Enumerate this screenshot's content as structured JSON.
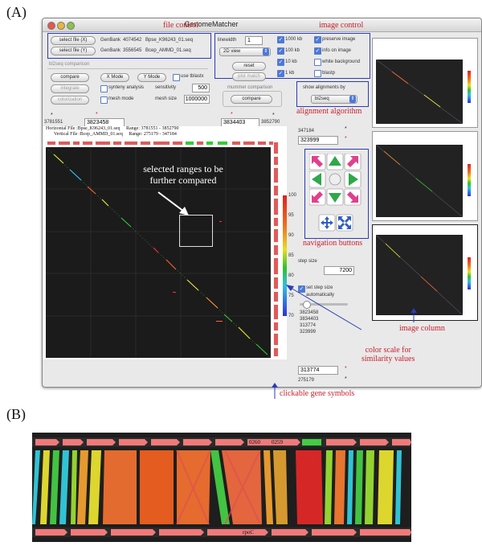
{
  "labels": {
    "panel_a": "(A)",
    "panel_b": "(B)"
  },
  "window": {
    "title": "GenomeMatcher"
  },
  "file_control": {
    "btn_x": "select file (X)",
    "btn_y": "select file (Y)",
    "rows": [
      {
        "format": "GenBank",
        "size": "4074542",
        "name": "Bpse_K96243_01.seq"
      },
      {
        "format": "GenBank",
        "size": "3556545",
        "name": "Bcep_AMMD_01.seq"
      }
    ]
  },
  "bl2seq": {
    "header": "bl2seq comparison",
    "compare": "compare",
    "x_mode": "X Mode",
    "y_mode": "Y Mode",
    "use_tblastx": "use tblastx",
    "integrate": "integrate",
    "synteny": "synteny analysis",
    "sensitivity_label": "sensitivity",
    "sensitivity": "500",
    "colorization": "colorization",
    "mesh_mode": "mesh mode",
    "mesh_size_label": "mesh size",
    "mesh_size": "1000000"
  },
  "image_control": {
    "linewidth_label": "linewidth",
    "linewidth": "1",
    "view": "2D view",
    "reset": "reset",
    "plot_match": "plot match",
    "opts_left": [
      "1000 kb",
      "100 kb",
      "10 kb",
      "1 kb"
    ],
    "opts_right": [
      "preserve image",
      "info on image",
      "white background",
      "blastp"
    ],
    "mummer_header": "mummer   comparison",
    "mummer_compare": "compare",
    "show_by": "show alignments by",
    "algo": "bl2seq"
  },
  "annotations": {
    "file_control": "file control",
    "image_control": "image control",
    "alignment_algorithm": "alignment algorithm",
    "selected_line1": "selected ranges to be",
    "selected_line2": "further compared",
    "navigation_buttons": "navigation buttons",
    "image_column": "image column",
    "color_scale_line1": "color scale for",
    "color_scale_line2": "similarity values",
    "gene_symbols": "clickable gene symbols"
  },
  "ranges": {
    "x_start": "3781551",
    "x_sel": "3823458",
    "x_end_sel": "3834403",
    "x_end": "3852790",
    "y_top": "347184",
    "y_sel": "323999",
    "y_low_sel": "313774",
    "y_low": "275179"
  },
  "plot_info": {
    "h_file": "Horizontal File :Bpse_K96243_01.seq",
    "h_range": "Range: 3781551 - 3852790",
    "v_file": "Vertical File :Bcep_AMMD_01.seq",
    "v_range": "Range: 275179 - 347184"
  },
  "color_scale": {
    "ticks": [
      "100",
      "95",
      "90",
      "85",
      "80",
      "75",
      "70"
    ]
  },
  "nav": {
    "step_size_label": "step size",
    "step_size": "7200",
    "set_step_label": "set step size",
    "auto_label": "automatically",
    "list": [
      "3823458",
      "3834403",
      "313774",
      "323999"
    ]
  },
  "panel_b": {
    "labels_top": [
      "0260",
      "0259"
    ],
    "label_bottom": "rpoC"
  }
}
